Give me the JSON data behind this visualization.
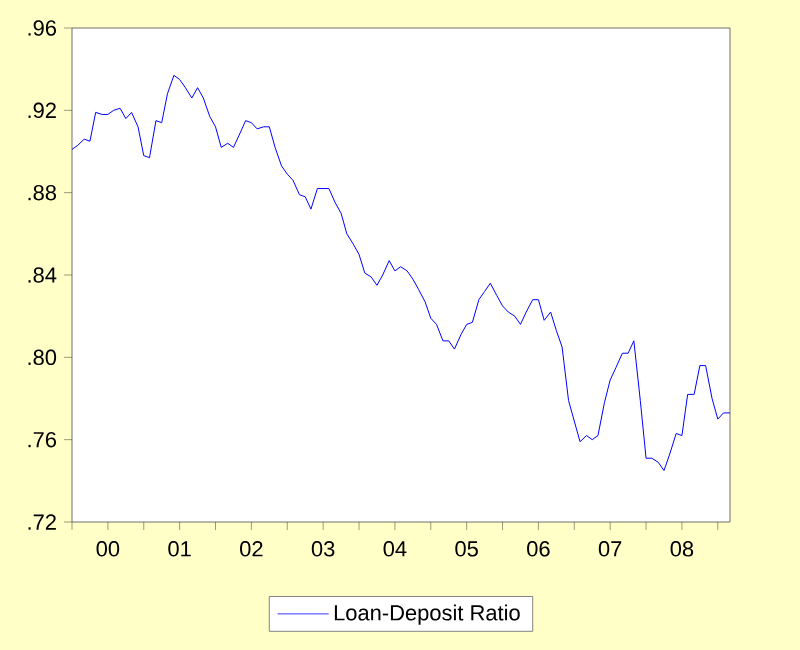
{
  "chart_data": {
    "type": "line",
    "x": [
      "2000-01",
      "2000-02",
      "2000-03",
      "2000-04",
      "2000-05",
      "2000-06",
      "2000-07",
      "2000-08",
      "2000-09",
      "2000-10",
      "2000-11",
      "2000-12",
      "2001-01",
      "2001-02",
      "2001-03",
      "2001-04",
      "2001-05",
      "2001-06",
      "2001-07",
      "2001-08",
      "2001-09",
      "2001-10",
      "2001-11",
      "2001-12",
      "2002-01",
      "2002-02",
      "2002-03",
      "2002-04",
      "2002-05",
      "2002-06",
      "2002-07",
      "2002-08",
      "2002-09",
      "2002-10",
      "2002-11",
      "2002-12",
      "2003-01",
      "2003-02",
      "2003-03",
      "2003-04",
      "2003-05",
      "2003-06",
      "2003-07",
      "2003-08",
      "2003-09",
      "2003-10",
      "2003-11",
      "2003-12",
      "2004-01",
      "2004-02",
      "2004-03",
      "2004-04",
      "2004-05",
      "2004-06",
      "2004-07",
      "2004-08",
      "2004-09",
      "2004-10",
      "2004-11",
      "2004-12",
      "2005-01",
      "2005-02",
      "2005-03",
      "2005-04",
      "2005-05",
      "2005-06",
      "2005-07",
      "2005-08",
      "2005-09",
      "2005-10",
      "2005-11",
      "2005-12",
      "2006-01",
      "2006-02",
      "2006-03",
      "2006-04",
      "2006-05",
      "2006-06",
      "2006-07",
      "2006-08",
      "2006-09",
      "2006-10",
      "2006-11",
      "2006-12",
      "2007-01",
      "2007-02",
      "2007-03",
      "2007-04",
      "2007-05",
      "2007-06",
      "2007-07",
      "2007-08",
      "2007-09",
      "2007-10",
      "2007-11",
      "2007-12",
      "2008-01",
      "2008-02",
      "2008-03",
      "2008-04",
      "2008-05",
      "2008-06",
      "2008-07",
      "2008-08",
      "2008-09",
      "2008-10",
      "2008-11",
      "2008-12",
      "2009-01",
      "2009-02",
      "2009-03"
    ],
    "series": [
      {
        "name": "Loan-Deposit Ratio",
        "color": "#0000ff",
        "values": [
          0.901,
          0.903,
          0.906,
          0.905,
          0.919,
          0.918,
          0.918,
          0.92,
          0.921,
          0.916,
          0.919,
          0.912,
          0.898,
          0.897,
          0.915,
          0.914,
          0.928,
          0.937,
          0.935,
          0.931,
          0.926,
          0.931,
          0.926,
          0.917,
          0.912,
          0.902,
          0.904,
          0.902,
          0.908,
          0.915,
          0.914,
          0.911,
          0.912,
          0.912,
          0.902,
          0.893,
          0.889,
          0.886,
          0.879,
          0.878,
          0.872,
          0.882,
          0.882,
          0.882,
          0.875,
          0.87,
          0.86,
          0.855,
          0.85,
          0.841,
          0.839,
          0.835,
          0.84,
          0.847,
          0.842,
          0.844,
          0.842,
          0.838,
          0.833,
          0.827,
          0.819,
          0.816,
          0.808,
          0.808,
          0.804,
          0.811,
          0.816,
          0.817,
          0.828,
          0.832,
          0.836,
          0.83,
          0.825,
          0.822,
          0.82,
          0.816,
          0.822,
          0.828,
          0.828,
          0.818,
          0.822,
          0.813,
          0.805,
          0.779,
          0.769,
          0.759,
          0.762,
          0.76,
          0.762,
          0.778,
          0.789,
          0.795,
          0.802,
          0.802,
          0.808,
          0.779,
          0.751,
          0.751,
          0.749,
          0.745,
          0.753,
          0.763,
          0.762,
          0.782,
          0.782,
          0.796,
          0.796,
          0.78,
          0.77,
          0.773,
          0.773
        ]
      }
    ],
    "xlim": [
      "2000-01",
      "2009-03"
    ],
    "xticks": [
      {
        "value": "2000-01",
        "label": null
      },
      {
        "value": "2000-07",
        "label": "00"
      },
      {
        "value": "2001-01",
        "label": null
      },
      {
        "value": "2001-07",
        "label": "01"
      },
      {
        "value": "2002-01",
        "label": null
      },
      {
        "value": "2002-07",
        "label": "02"
      },
      {
        "value": "2003-01",
        "label": null
      },
      {
        "value": "2003-07",
        "label": "03"
      },
      {
        "value": "2004-01",
        "label": null
      },
      {
        "value": "2004-07",
        "label": "04"
      },
      {
        "value": "2005-01",
        "label": null
      },
      {
        "value": "2005-07",
        "label": "05"
      },
      {
        "value": "2006-01",
        "label": null
      },
      {
        "value": "2006-07",
        "label": "06"
      },
      {
        "value": "2007-01",
        "label": null
      },
      {
        "value": "2007-07",
        "label": "07"
      },
      {
        "value": "2008-01",
        "label": null
      },
      {
        "value": "2008-07",
        "label": "08"
      },
      {
        "value": "2009-01",
        "label": null
      }
    ],
    "ylim": [
      0.72,
      0.96
    ],
    "yticks": [
      {
        "value": 0.72,
        "label": ".72"
      },
      {
        "value": 0.76,
        "label": ".76"
      },
      {
        "value": 0.8,
        "label": ".80"
      },
      {
        "value": 0.84,
        "label": ".84"
      },
      {
        "value": 0.88,
        "label": ".88"
      },
      {
        "value": 0.92,
        "label": ".92"
      },
      {
        "value": 0.96,
        "label": ".96"
      }
    ],
    "legend": "bottom",
    "marker": "none",
    "line_style": "solid"
  }
}
